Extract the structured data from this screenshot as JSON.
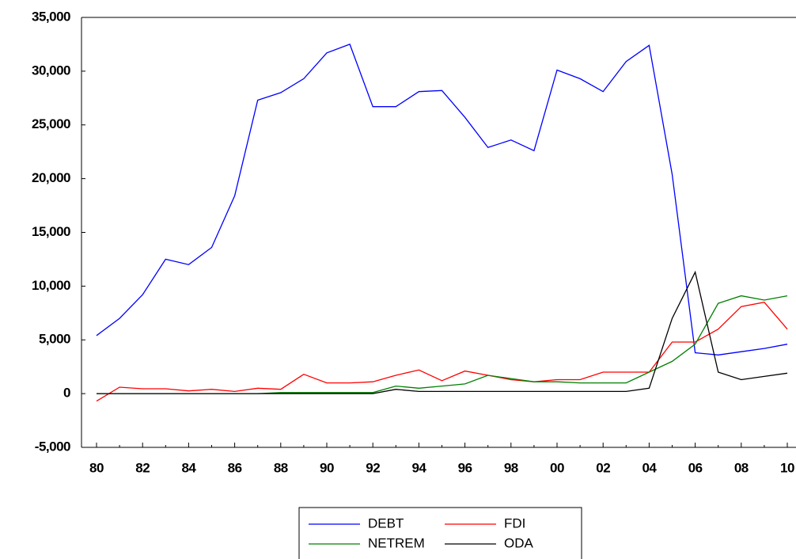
{
  "chart_data": {
    "type": "line",
    "categories": [
      "80",
      null,
      "82",
      null,
      "84",
      null,
      "86",
      null,
      "88",
      null,
      "90",
      null,
      "92",
      null,
      "94",
      null,
      "96",
      null,
      "98",
      null,
      "00",
      null,
      "02",
      null,
      "04",
      null,
      "06",
      null,
      "08",
      null,
      "10"
    ],
    "series": [
      {
        "name": "DEBT",
        "color": "#0000ff",
        "values": [
          5400,
          7000,
          9200,
          12500,
          12000,
          13600,
          18400,
          27300,
          28000,
          29300,
          31700,
          32500,
          26700,
          26700,
          28100,
          28200,
          25700,
          22900,
          23600,
          22600,
          30100,
          29300,
          28100,
          30900,
          32400,
          20400,
          3800,
          3600,
          3900,
          4200,
          4600
        ]
      },
      {
        "name": "FDI",
        "color": "#ff0000",
        "values": [
          -700,
          600,
          450,
          450,
          250,
          400,
          200,
          500,
          400,
          1800,
          1000,
          1000,
          1100,
          1700,
          2200,
          1200,
          2100,
          1700,
          1300,
          1100,
          1300,
          1300,
          2000,
          2000,
          2000,
          4800,
          4800,
          6000,
          8100,
          8500,
          6000
        ]
      },
      {
        "name": "NETREM",
        "color": "#008000",
        "values": [
          0,
          0,
          0,
          0,
          0,
          0,
          0,
          0,
          100,
          100,
          100,
          100,
          100,
          700,
          500,
          700,
          900,
          1700,
          1400,
          1100,
          1100,
          1000,
          1000,
          1000,
          2000,
          3000,
          4600,
          8400,
          9100,
          8700,
          9100
        ]
      },
      {
        "name": "ODA",
        "color": "#000000",
        "values": [
          0,
          0,
          0,
          0,
          0,
          0,
          0,
          0,
          0,
          0,
          0,
          0,
          0,
          400,
          200,
          200,
          200,
          200,
          200,
          200,
          200,
          200,
          200,
          200,
          500,
          7000,
          11300,
          2000,
          1300,
          1600,
          1900
        ]
      }
    ],
    "ylim": [
      -5000,
      35000
    ],
    "yticks": [
      {
        "value": -5000,
        "label": "-5,000"
      },
      0,
      {
        "value": 5000,
        "label": "5,000"
      },
      {
        "value": 10000,
        "label": "10,000"
      },
      {
        "value": 15000,
        "label": "15,000"
      },
      {
        "value": 20000,
        "label": "20,000"
      },
      {
        "value": 25000,
        "label": "25,000"
      },
      {
        "value": 30000,
        "label": "30,000"
      },
      {
        "value": 35000,
        "label": "35,000"
      }
    ],
    "grid": false,
    "legend": "below"
  }
}
